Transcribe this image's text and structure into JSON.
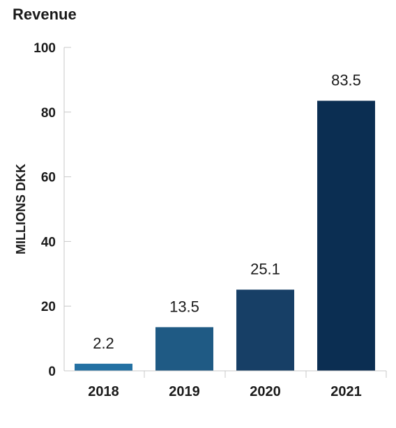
{
  "chart_data": {
    "type": "bar",
    "title": "Revenue",
    "xlabel": "",
    "ylabel": "MILLIONS DKK",
    "categories": [
      "2018",
      "2019",
      "2020",
      "2021"
    ],
    "values": [
      2.2,
      13.5,
      25.1,
      83.5
    ],
    "data_labels": [
      "2.2",
      "13.5",
      "25.1",
      "83.5"
    ],
    "ylim": [
      0,
      100
    ],
    "yticks": [
      0,
      20,
      40,
      60,
      80,
      100
    ],
    "ytick_labels": [
      "0",
      "20",
      "40",
      "60",
      "80",
      "100"
    ],
    "grid": false,
    "legend": "none",
    "colors": [
      "#2471a3",
      "#1f5a84",
      "#173f66",
      "#0b2e52"
    ]
  }
}
